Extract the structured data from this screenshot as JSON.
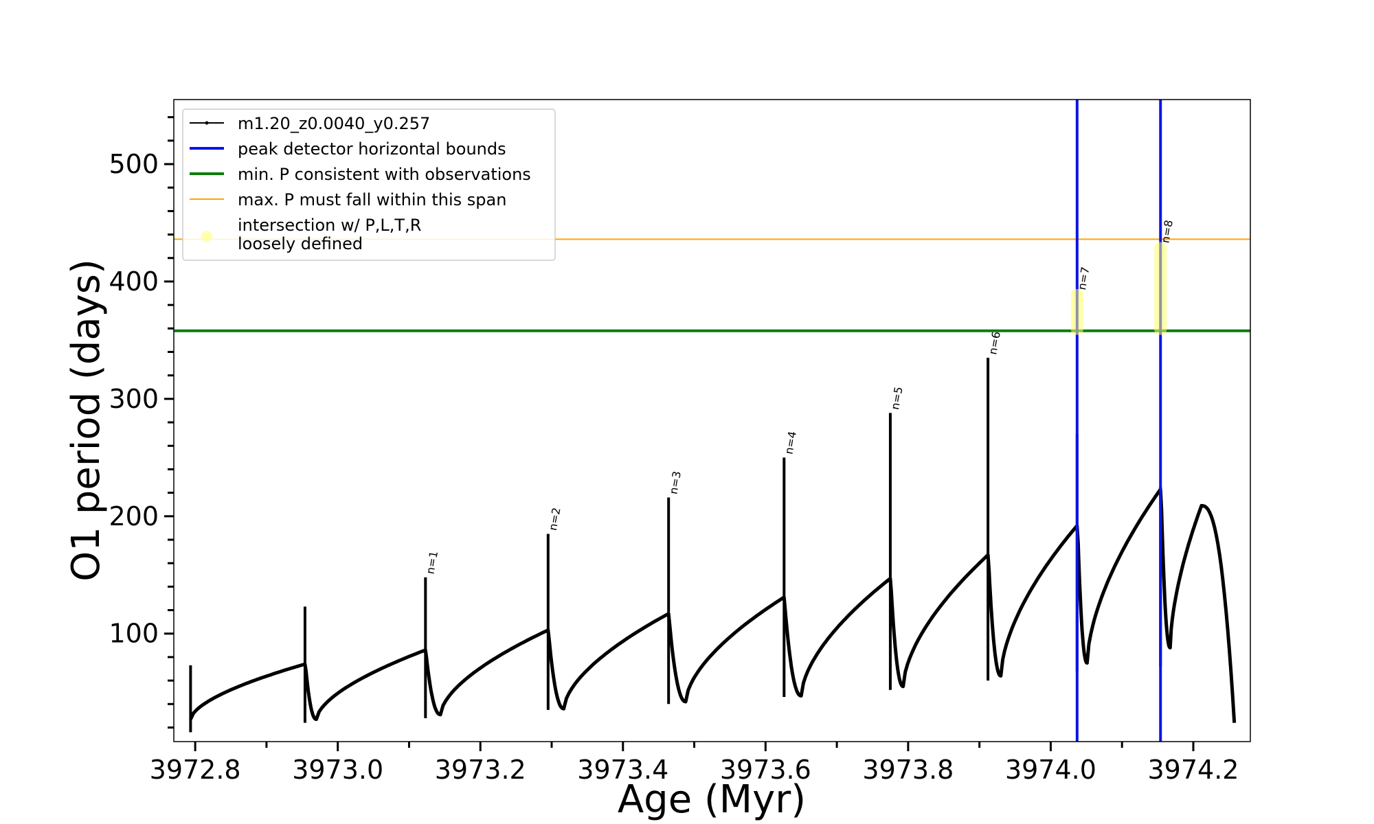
{
  "chart_data": {
    "type": "line",
    "title": "",
    "xlabel": "Age (Myr)",
    "ylabel": "O1 period (days)",
    "xlim": [
      3972.77,
      3974.28
    ],
    "ylim": [
      8,
      555
    ],
    "xticks": [
      3972.8,
      3973.0,
      3973.2,
      3973.4,
      3973.6,
      3973.8,
      3974.0,
      3974.2
    ],
    "xtick_labels": [
      "3972.8",
      "3973.0",
      "3973.2",
      "3973.4",
      "3973.6",
      "3973.8",
      "3974.0",
      "3974.2"
    ],
    "yticks": [
      100,
      200,
      300,
      400,
      500
    ],
    "ytick_labels": [
      "100",
      "200",
      "300",
      "400",
      "500"
    ],
    "grid": false,
    "legend_position": "top-left",
    "legend": [
      {
        "label": "m1.20_z0.0040_y0.257",
        "style": "line-marker",
        "color": "#000000"
      },
      {
        "label": "peak detector horizontal bounds",
        "style": "line",
        "color": "#0a14e6"
      },
      {
        "label": "min. P consistent with observations",
        "style": "line",
        "color": "#0a7d0a"
      },
      {
        "label": "max. P must fall within this span",
        "style": "thin-line",
        "color": "#ffa500"
      },
      {
        "label": "intersection w/ P,L,T,R",
        "label_line2": "loosely defined",
        "style": "marker",
        "color": "#ffff99"
      }
    ],
    "series": [
      {
        "name": "m1.20_z0.0040_y0.257",
        "color": "#000000",
        "cycles": [
          {
            "start_age": 3972.7935,
            "start_value": 27,
            "end_age": 3972.954,
            "end_value": 74,
            "spike_max": 73,
            "spike_min": 16
          },
          {
            "start_age": 3972.954,
            "min_age": 3972.97,
            "min_value": 27,
            "end_age": 3973.123,
            "end_value": 86,
            "spike_max": 123,
            "spike_min": 24
          },
          {
            "start_age": 3973.123,
            "min_age": 3973.144,
            "min_value": 31,
            "end_age": 3973.295,
            "end_value": 103,
            "spike_max": 148,
            "spike_min": 28
          },
          {
            "start_age": 3973.295,
            "min_age": 3973.317,
            "min_value": 36,
            "end_age": 3973.464,
            "end_value": 117,
            "spike_max": 185,
            "spike_min": 35
          },
          {
            "start_age": 3973.464,
            "min_age": 3973.488,
            "min_value": 42,
            "end_age": 3973.626,
            "end_value": 131,
            "spike_max": 216,
            "spike_min": 40
          },
          {
            "start_age": 3973.626,
            "min_age": 3973.65,
            "min_value": 47,
            "end_age": 3973.775,
            "end_value": 147,
            "spike_max": 250,
            "spike_min": 46
          },
          {
            "start_age": 3973.775,
            "min_age": 3973.793,
            "min_value": 55,
            "end_age": 3973.912,
            "end_value": 167,
            "spike_max": 288,
            "spike_min": 52
          },
          {
            "start_age": 3973.912,
            "min_age": 3973.93,
            "min_value": 64,
            "end_age": 3974.037,
            "end_value": 192,
            "spike_max": 335,
            "spike_min": 60
          },
          {
            "start_age": 3974.037,
            "min_age": 3974.051,
            "min_value": 75,
            "end_age": 3974.154,
            "end_value": 223,
            "spike_max": 270,
            "spike_min": 68
          },
          {
            "start_age": 3974.154,
            "min_age": 3974.1675,
            "min_value": 88,
            "peak_age": 3974.2115,
            "peak_value": 209,
            "end_age": 3974.2575,
            "end_value": 24,
            "spike_max": 225,
            "spike_min": 72
          }
        ]
      }
    ],
    "peak_labels": [
      {
        "text": "n=1",
        "age": 3973.123,
        "value": 148
      },
      {
        "text": "n=2",
        "age": 3973.295,
        "value": 185
      },
      {
        "text": "n=3",
        "age": 3973.464,
        "value": 216
      },
      {
        "text": "n=4",
        "age": 3973.626,
        "value": 250
      },
      {
        "text": "n=5",
        "age": 3973.775,
        "value": 288
      },
      {
        "text": "n=6",
        "age": 3973.912,
        "value": 335
      },
      {
        "text": "n=7",
        "age": 3974.037,
        "value": 390
      },
      {
        "text": "n=8",
        "age": 3974.154,
        "value": 430
      }
    ],
    "vertical_lines": [
      {
        "age": 3974.037,
        "color": "#0a14e6"
      },
      {
        "age": 3974.154,
        "color": "#0a14e6"
      }
    ],
    "horizontal_lines": [
      {
        "value": 358,
        "color": "#0a7d0a",
        "kind": "min"
      },
      {
        "value": 436,
        "color": "#ffa500",
        "kind": "max"
      }
    ],
    "highlight_spans": [
      {
        "age": 3974.037,
        "value_low": 358,
        "value_high": 390,
        "color": "#ffff66"
      },
      {
        "age": 3974.154,
        "value_low": 358,
        "value_high": 430,
        "color": "#ffff66"
      }
    ]
  }
}
